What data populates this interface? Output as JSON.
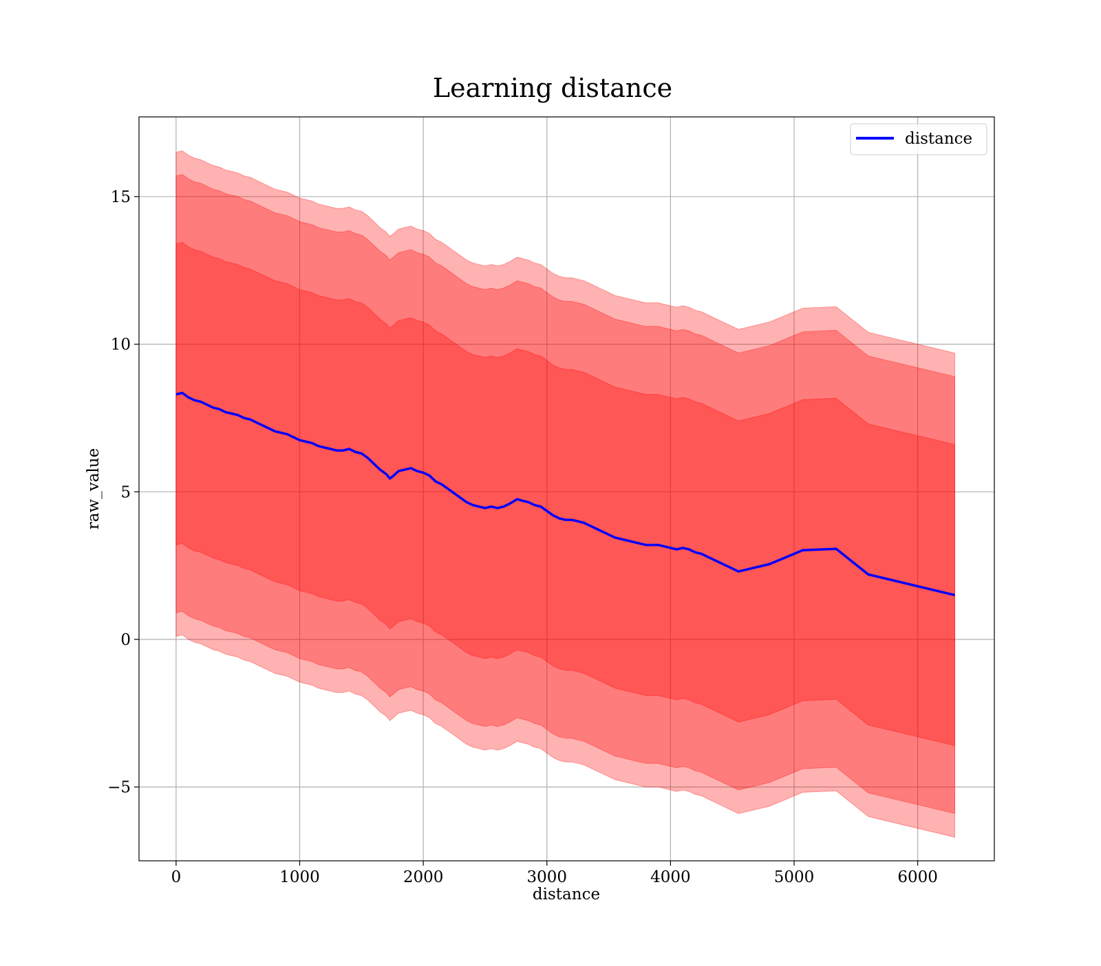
{
  "chart_data": {
    "type": "line",
    "title": "Learning distance",
    "xlabel": "distance",
    "ylabel": "raw_value",
    "xlim": [
      -300,
      6620
    ],
    "ylim": [
      -7.5,
      17.7
    ],
    "xticks": [
      0,
      1000,
      2000,
      3000,
      4000,
      5000,
      6000
    ],
    "xtick_labels": [
      "0",
      "1000",
      "2000",
      "3000",
      "4000",
      "5000",
      "6000"
    ],
    "yticks": [
      -5,
      0,
      5,
      10,
      15
    ],
    "ytick_labels": [
      "−5",
      "0",
      "5",
      "10",
      "15"
    ],
    "grid": true,
    "legend_position": "top-right",
    "colors": {
      "line": "#0000ff",
      "band": "#ff0000",
      "band_opacity": 0.3,
      "axes": "#000000",
      "grid": "#b0b0b0"
    },
    "series": [
      {
        "name": "distance",
        "x": [
          0,
          50,
          100,
          150,
          200,
          250,
          300,
          350,
          400,
          450,
          500,
          550,
          600,
          650,
          700,
          750,
          800,
          850,
          900,
          950,
          1000,
          1050,
          1100,
          1150,
          1200,
          1250,
          1300,
          1350,
          1400,
          1450,
          1500,
          1550,
          1600,
          1650,
          1700,
          1730,
          1760,
          1800,
          1850,
          1900,
          1950,
          2000,
          2050,
          2100,
          2150,
          2200,
          2250,
          2300,
          2350,
          2400,
          2450,
          2500,
          2550,
          2600,
          2650,
          2700,
          2760,
          2800,
          2850,
          2900,
          2950,
          3000,
          3050,
          3100,
          3150,
          3200,
          3250,
          3300,
          3350,
          3400,
          3450,
          3500,
          3550,
          3600,
          3650,
          3700,
          3750,
          3800,
          3850,
          3900,
          3950,
          4000,
          4050,
          4100,
          4150,
          4200,
          4250,
          4300,
          4400,
          4550,
          4800,
          5070,
          5340,
          5600,
          6300
        ],
        "y": [
          8.3,
          8.35,
          8.2,
          8.1,
          8.05,
          7.95,
          7.85,
          7.8,
          7.7,
          7.65,
          7.6,
          7.5,
          7.45,
          7.35,
          7.25,
          7.15,
          7.05,
          7.0,
          6.95,
          6.85,
          6.75,
          6.7,
          6.65,
          6.55,
          6.5,
          6.45,
          6.4,
          6.4,
          6.45,
          6.35,
          6.3,
          6.15,
          5.95,
          5.75,
          5.6,
          5.45,
          5.55,
          5.7,
          5.75,
          5.8,
          5.7,
          5.65,
          5.55,
          5.35,
          5.25,
          5.1,
          4.95,
          4.8,
          4.65,
          4.55,
          4.5,
          4.45,
          4.5,
          4.45,
          4.5,
          4.6,
          4.75,
          4.7,
          4.65,
          4.55,
          4.5,
          4.35,
          4.2,
          4.1,
          4.05,
          4.05,
          4.0,
          3.95,
          3.85,
          3.75,
          3.65,
          3.55,
          3.45,
          3.4,
          3.35,
          3.3,
          3.25,
          3.2,
          3.2,
          3.2,
          3.15,
          3.1,
          3.05,
          3.1,
          3.05,
          2.95,
          2.9,
          2.8,
          2.6,
          2.3,
          2.55,
          3.02,
          3.07,
          2.2,
          1.5
        ],
        "bands": [
          {
            "sigma": 1,
            "lower_offset": -5.1,
            "upper_offset": 5.1
          },
          {
            "sigma": 2,
            "lower_offset": -7.4,
            "upper_offset": 7.4
          },
          {
            "sigma": 3,
            "lower_offset": -8.2,
            "upper_offset": 8.2
          }
        ]
      }
    ]
  }
}
